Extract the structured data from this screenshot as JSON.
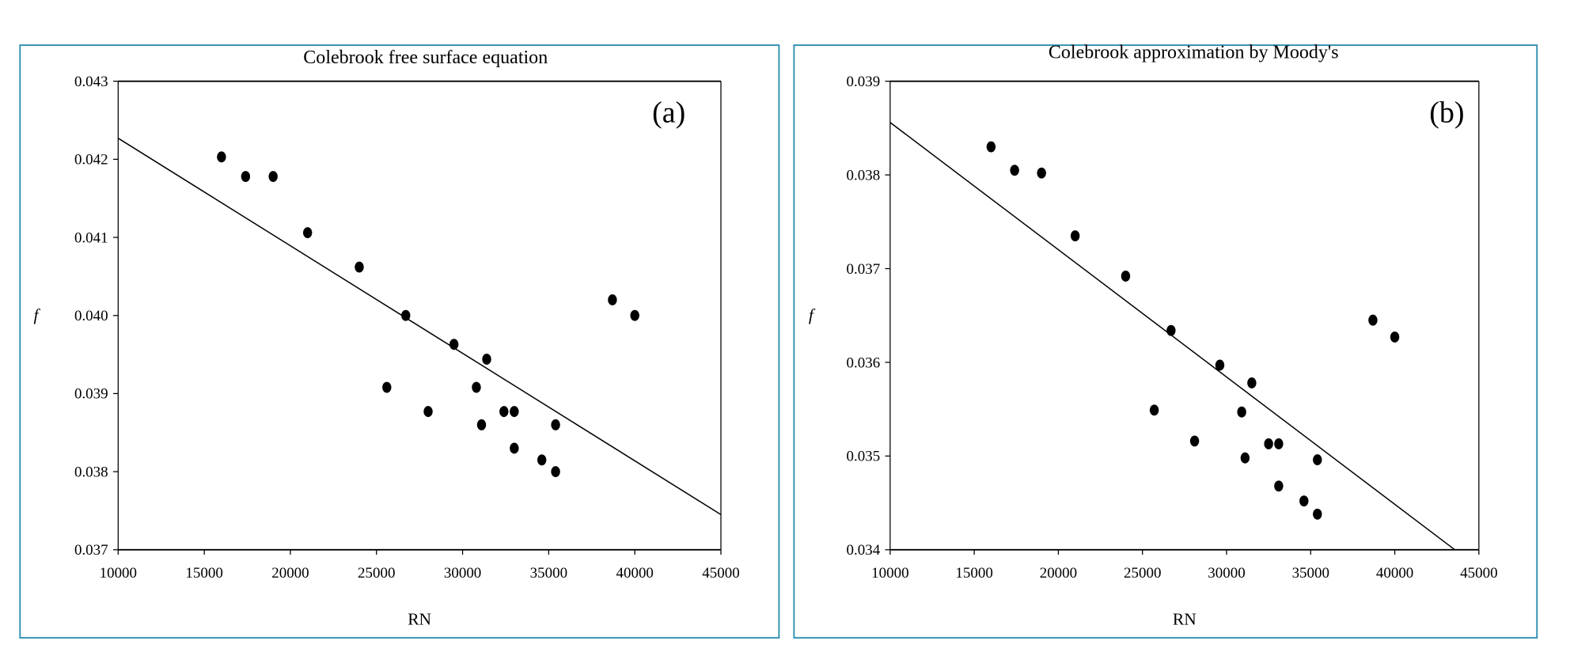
{
  "chart_data": [
    {
      "type": "scatter",
      "title": "Colebrook free surface equation",
      "panel_label": "(a)",
      "xlabel": "RN",
      "ylabel": "f",
      "xlim": [
        10000,
        45000
      ],
      "ylim": [
        0.037,
        0.043
      ],
      "xticks": [
        "10000",
        "15000",
        "20000",
        "25000",
        "30000",
        "35000",
        "40000",
        "45000"
      ],
      "yticks": [
        "0.037",
        "0.038",
        "0.039",
        "0.040",
        "0.041",
        "0.042",
        "0.043"
      ],
      "grid": false,
      "points": [
        [
          16000,
          0.04203
        ],
        [
          17400,
          0.04178
        ],
        [
          19000,
          0.04178
        ],
        [
          21000,
          0.04106
        ],
        [
          24000,
          0.04062
        ],
        [
          26700,
          0.04
        ],
        [
          25600,
          0.03908
        ],
        [
          28000,
          0.03877
        ],
        [
          29500,
          0.03963
        ],
        [
          30800,
          0.03908
        ],
        [
          31400,
          0.03944
        ],
        [
          31100,
          0.0386
        ],
        [
          32400,
          0.03877
        ],
        [
          33000,
          0.03877
        ],
        [
          33000,
          0.0383
        ],
        [
          34600,
          0.03815
        ],
        [
          35400,
          0.038
        ],
        [
          35400,
          0.0386
        ],
        [
          38700,
          0.0402
        ],
        [
          40000,
          0.04
        ]
      ],
      "trendline": [
        [
          10000,
          0.04227
        ],
        [
          45000,
          0.03745
        ]
      ]
    },
    {
      "type": "scatter",
      "title": "Colebrook approximation by Moody's",
      "panel_label": "(b)",
      "xlabel": "RN",
      "ylabel": "f",
      "xlim": [
        10000,
        45000
      ],
      "ylim": [
        0.034,
        0.039
      ],
      "xticks": [
        "10000",
        "15000",
        "20000",
        "25000",
        "30000",
        "35000",
        "40000",
        "45000"
      ],
      "yticks": [
        "0.034",
        "0.035",
        "0.036",
        "0.037",
        "0.038",
        "0.039"
      ],
      "grid": false,
      "points": [
        [
          16000,
          0.0383
        ],
        [
          17400,
          0.03805
        ],
        [
          19000,
          0.03802
        ],
        [
          21000,
          0.03735
        ],
        [
          24000,
          0.03692
        ],
        [
          26700,
          0.03634
        ],
        [
          25700,
          0.03549
        ],
        [
          28100,
          0.03516
        ],
        [
          29600,
          0.03597
        ],
        [
          31500,
          0.03578
        ],
        [
          30900,
          0.03547
        ],
        [
          31100,
          0.03498
        ],
        [
          32500,
          0.03513
        ],
        [
          33100,
          0.03513
        ],
        [
          33100,
          0.03468
        ],
        [
          34600,
          0.03452
        ],
        [
          35400,
          0.03438
        ],
        [
          35400,
          0.03496
        ],
        [
          38700,
          0.03645
        ],
        [
          40000,
          0.03627
        ]
      ],
      "trendline": [
        [
          10000,
          0.03856
        ],
        [
          43570,
          0.034
        ]
      ]
    }
  ],
  "colors": {
    "frame": "#2f8fb0",
    "marks": "#000000"
  }
}
